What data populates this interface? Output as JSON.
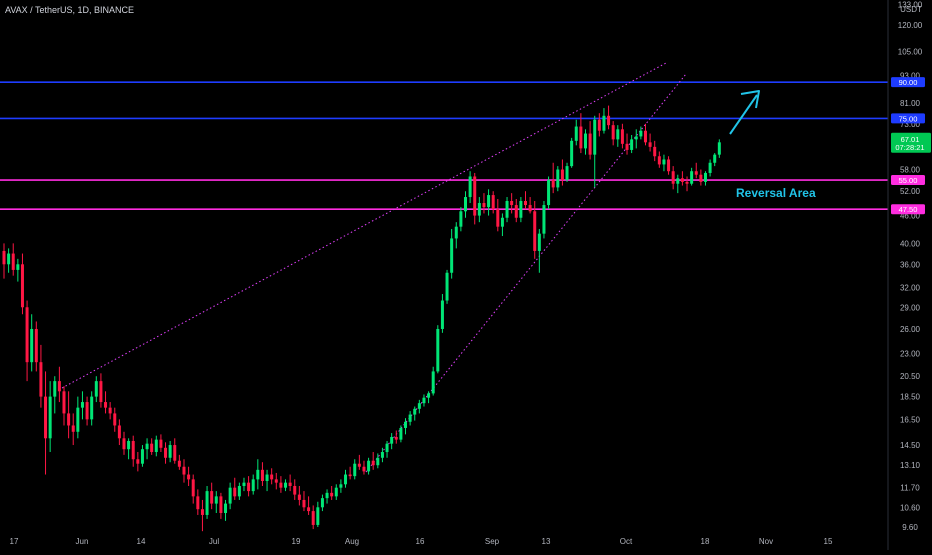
{
  "header": {
    "symbol": "AVAX / TetherUS, 1D, BINANCE"
  },
  "price_axis": {
    "currency": "USDT",
    "ticks": [
      "133.00",
      "120.00",
      "105.00",
      "93.00",
      "81.00",
      "73.00",
      "58.00",
      "52.00",
      "46.00",
      "40.00",
      "36.00",
      "32.00",
      "29.00",
      "26.00",
      "23.00",
      "20.50",
      "18.50",
      "16.50",
      "14.50",
      "13.10",
      "11.70",
      "10.60",
      "9.60"
    ],
    "current_price": "67.01",
    "countdown": "07:28:21"
  },
  "time_axis": {
    "labels": [
      "17",
      "Jun",
      "14",
      "Jul",
      "19",
      "Aug",
      "16",
      "Sep",
      "13",
      "Oct",
      "18",
      "Nov",
      "15"
    ]
  },
  "colors": {
    "background": "#000000",
    "bull": "#00e676",
    "bear": "#ff1744",
    "blue_level": "#1e3cff",
    "magenta_level": "#ff2de0",
    "wedge": "#e040fb",
    "arrow": "#21c4e8",
    "price_tag": "#00c853"
  },
  "chart_data": {
    "type": "candlestick",
    "title": "AVAX / TetherUS, 1D, BINANCE",
    "x_range": [
      "2021-05-17",
      "2021-11-20"
    ],
    "y_range": [
      9.3,
      140
    ],
    "y_scale": "log",
    "horizontal_levels": [
      {
        "value": 90.0,
        "label": "90.00",
        "color": "blue"
      },
      {
        "value": 75.0,
        "label": "75.00",
        "color": "blue"
      },
      {
        "value": 55.0,
        "label": "55.00",
        "color": "magenta"
      },
      {
        "value": 47.5,
        "label": "47.50",
        "color": "magenta"
      }
    ],
    "annotations": [
      {
        "text": "Reversal Area"
      }
    ],
    "candles": [
      {
        "o": 38.5,
        "h": 40.0,
        "l": 33.5,
        "c": 36.0
      },
      {
        "o": 36.0,
        "h": 39.0,
        "l": 34.5,
        "c": 38.0
      },
      {
        "o": 38.0,
        "h": 40.0,
        "l": 34.0,
        "c": 35.0
      },
      {
        "o": 35.0,
        "h": 37.0,
        "l": 33.0,
        "c": 36.0
      },
      {
        "o": 36.0,
        "h": 38.0,
        "l": 28.0,
        "c": 29.0
      },
      {
        "o": 29.0,
        "h": 30.0,
        "l": 20.0,
        "c": 22.0
      },
      {
        "o": 22.0,
        "h": 28.0,
        "l": 21.0,
        "c": 26.0
      },
      {
        "o": 26.0,
        "h": 27.0,
        "l": 21.0,
        "c": 22.0
      },
      {
        "o": 22.0,
        "h": 24.0,
        "l": 17.5,
        "c": 18.5
      },
      {
        "o": 18.5,
        "h": 21.0,
        "l": 12.5,
        "c": 15.0
      },
      {
        "o": 15.0,
        "h": 20.0,
        "l": 14.0,
        "c": 18.5
      },
      {
        "o": 18.5,
        "h": 20.5,
        "l": 17.0,
        "c": 20.0
      },
      {
        "o": 20.0,
        "h": 21.5,
        "l": 18.0,
        "c": 19.0
      },
      {
        "o": 19.0,
        "h": 19.5,
        "l": 16.0,
        "c": 17.0
      },
      {
        "o": 17.0,
        "h": 19.0,
        "l": 15.0,
        "c": 16.0
      },
      {
        "o": 16.0,
        "h": 17.0,
        "l": 14.5,
        "c": 15.5
      },
      {
        "o": 15.5,
        "h": 18.5,
        "l": 15.0,
        "c": 17.5
      },
      {
        "o": 17.5,
        "h": 19.0,
        "l": 16.5,
        "c": 18.0
      },
      {
        "o": 18.0,
        "h": 18.5,
        "l": 16.0,
        "c": 16.5
      },
      {
        "o": 16.5,
        "h": 19.0,
        "l": 16.0,
        "c": 18.5
      },
      {
        "o": 18.5,
        "h": 20.5,
        "l": 18.0,
        "c": 20.0
      },
      {
        "o": 20.0,
        "h": 20.8,
        "l": 17.5,
        "c": 18.0
      },
      {
        "o": 18.0,
        "h": 19.0,
        "l": 17.0,
        "c": 17.5
      },
      {
        "o": 17.5,
        "h": 18.0,
        "l": 16.5,
        "c": 17.0
      },
      {
        "o": 17.0,
        "h": 17.5,
        "l": 15.5,
        "c": 16.0
      },
      {
        "o": 16.0,
        "h": 16.5,
        "l": 14.5,
        "c": 15.0
      },
      {
        "o": 15.0,
        "h": 15.5,
        "l": 13.8,
        "c": 14.2
      },
      {
        "o": 14.2,
        "h": 15.0,
        "l": 13.5,
        "c": 14.8
      },
      {
        "o": 14.8,
        "h": 15.2,
        "l": 13.0,
        "c": 13.5
      },
      {
        "o": 13.5,
        "h": 14.0,
        "l": 12.7,
        "c": 13.2
      },
      {
        "o": 13.2,
        "h": 14.5,
        "l": 13.0,
        "c": 14.2
      },
      {
        "o": 14.2,
        "h": 15.0,
        "l": 13.5,
        "c": 14.6
      },
      {
        "o": 14.6,
        "h": 15.0,
        "l": 13.8,
        "c": 14.0
      },
      {
        "o": 14.0,
        "h": 15.2,
        "l": 13.7,
        "c": 14.9
      },
      {
        "o": 14.9,
        "h": 15.3,
        "l": 14.0,
        "c": 14.3
      },
      {
        "o": 14.3,
        "h": 14.7,
        "l": 13.2,
        "c": 13.6
      },
      {
        "o": 13.6,
        "h": 14.8,
        "l": 13.3,
        "c": 14.5
      },
      {
        "o": 14.5,
        "h": 15.0,
        "l": 13.2,
        "c": 13.4
      },
      {
        "o": 13.4,
        "h": 13.8,
        "l": 12.8,
        "c": 13.0
      },
      {
        "o": 13.0,
        "h": 13.5,
        "l": 12.0,
        "c": 12.5
      },
      {
        "o": 12.5,
        "h": 13.0,
        "l": 11.8,
        "c": 12.2
      },
      {
        "o": 12.2,
        "h": 12.5,
        "l": 10.8,
        "c": 11.2
      },
      {
        "o": 11.2,
        "h": 11.6,
        "l": 10.2,
        "c": 10.5
      },
      {
        "o": 10.5,
        "h": 11.0,
        "l": 9.4,
        "c": 10.2
      },
      {
        "o": 10.2,
        "h": 11.8,
        "l": 10.0,
        "c": 11.5
      },
      {
        "o": 11.5,
        "h": 12.0,
        "l": 10.5,
        "c": 10.8
      },
      {
        "o": 10.8,
        "h": 11.5,
        "l": 10.3,
        "c": 11.2
      },
      {
        "o": 11.2,
        "h": 11.4,
        "l": 10.0,
        "c": 10.3
      },
      {
        "o": 10.3,
        "h": 11.0,
        "l": 9.9,
        "c": 10.8
      },
      {
        "o": 10.8,
        "h": 12.0,
        "l": 10.5,
        "c": 11.7
      },
      {
        "o": 11.7,
        "h": 12.3,
        "l": 11.0,
        "c": 11.2
      },
      {
        "o": 11.2,
        "h": 12.0,
        "l": 11.0,
        "c": 11.8
      },
      {
        "o": 11.8,
        "h": 12.3,
        "l": 11.5,
        "c": 12.0
      },
      {
        "o": 12.0,
        "h": 12.4,
        "l": 11.2,
        "c": 11.5
      },
      {
        "o": 11.5,
        "h": 12.5,
        "l": 11.3,
        "c": 12.2
      },
      {
        "o": 12.2,
        "h": 13.5,
        "l": 11.6,
        "c": 12.8
      },
      {
        "o": 12.8,
        "h": 13.3,
        "l": 11.8,
        "c": 12.1
      },
      {
        "o": 12.1,
        "h": 12.8,
        "l": 11.5,
        "c": 12.5
      },
      {
        "o": 12.5,
        "h": 12.9,
        "l": 11.9,
        "c": 12.2
      },
      {
        "o": 12.2,
        "h": 12.6,
        "l": 11.6,
        "c": 12.0
      },
      {
        "o": 12.0,
        "h": 12.4,
        "l": 11.4,
        "c": 11.7
      },
      {
        "o": 11.7,
        "h": 12.2,
        "l": 11.5,
        "c": 12.0
      },
      {
        "o": 12.0,
        "h": 12.5,
        "l": 11.5,
        "c": 11.8
      },
      {
        "o": 11.8,
        "h": 12.2,
        "l": 11.0,
        "c": 11.3
      },
      {
        "o": 11.3,
        "h": 11.8,
        "l": 10.7,
        "c": 11.0
      },
      {
        "o": 11.0,
        "h": 11.5,
        "l": 10.4,
        "c": 10.6
      },
      {
        "o": 10.6,
        "h": 11.2,
        "l": 10.2,
        "c": 10.4
      },
      {
        "o": 10.4,
        "h": 10.7,
        "l": 9.5,
        "c": 9.7
      },
      {
        "o": 9.7,
        "h": 10.9,
        "l": 9.6,
        "c": 10.6
      },
      {
        "o": 10.6,
        "h": 11.3,
        "l": 10.4,
        "c": 11.1
      },
      {
        "o": 11.1,
        "h": 11.6,
        "l": 10.8,
        "c": 11.4
      },
      {
        "o": 11.4,
        "h": 11.8,
        "l": 11.0,
        "c": 11.2
      },
      {
        "o": 11.2,
        "h": 11.9,
        "l": 11.0,
        "c": 11.7
      },
      {
        "o": 11.7,
        "h": 12.2,
        "l": 11.4,
        "c": 11.9
      },
      {
        "o": 11.9,
        "h": 12.8,
        "l": 11.7,
        "c": 12.5
      },
      {
        "o": 12.5,
        "h": 13.0,
        "l": 12.2,
        "c": 12.4
      },
      {
        "o": 12.4,
        "h": 13.5,
        "l": 12.2,
        "c": 13.2
      },
      {
        "o": 13.2,
        "h": 13.8,
        "l": 12.8,
        "c": 13.0
      },
      {
        "o": 13.0,
        "h": 13.4,
        "l": 12.5,
        "c": 12.7
      },
      {
        "o": 12.7,
        "h": 13.6,
        "l": 12.5,
        "c": 13.4
      },
      {
        "o": 13.4,
        "h": 14.0,
        "l": 12.8,
        "c": 13.1
      },
      {
        "o": 13.1,
        "h": 13.9,
        "l": 12.9,
        "c": 13.6
      },
      {
        "o": 13.6,
        "h": 14.3,
        "l": 13.3,
        "c": 14.0
      },
      {
        "o": 14.0,
        "h": 14.8,
        "l": 13.6,
        "c": 14.6
      },
      {
        "o": 14.6,
        "h": 15.4,
        "l": 14.2,
        "c": 15.1
      },
      {
        "o": 15.1,
        "h": 15.6,
        "l": 14.6,
        "c": 14.9
      },
      {
        "o": 14.9,
        "h": 16.0,
        "l": 14.7,
        "c": 15.8
      },
      {
        "o": 15.8,
        "h": 16.6,
        "l": 15.3,
        "c": 16.3
      },
      {
        "o": 16.3,
        "h": 17.2,
        "l": 16.0,
        "c": 16.9
      },
      {
        "o": 16.9,
        "h": 17.6,
        "l": 16.4,
        "c": 17.4
      },
      {
        "o": 17.4,
        "h": 18.2,
        "l": 17.0,
        "c": 17.9
      },
      {
        "o": 17.9,
        "h": 18.7,
        "l": 17.6,
        "c": 18.4
      },
      {
        "o": 18.4,
        "h": 19.0,
        "l": 17.9,
        "c": 18.8
      },
      {
        "o": 18.8,
        "h": 21.5,
        "l": 18.6,
        "c": 21.0
      },
      {
        "o": 21.0,
        "h": 26.5,
        "l": 20.8,
        "c": 26.0
      },
      {
        "o": 26.0,
        "h": 31.0,
        "l": 25.5,
        "c": 30.0
      },
      {
        "o": 30.0,
        "h": 35.0,
        "l": 29.5,
        "c": 34.5
      },
      {
        "o": 34.5,
        "h": 43.0,
        "l": 33.5,
        "c": 41.0
      },
      {
        "o": 41.0,
        "h": 44.5,
        "l": 39.0,
        "c": 43.5
      },
      {
        "o": 43.5,
        "h": 48.0,
        "l": 42.5,
        "c": 47.0
      },
      {
        "o": 47.0,
        "h": 52.0,
        "l": 45.5,
        "c": 50.5
      },
      {
        "o": 50.5,
        "h": 57.5,
        "l": 49.0,
        "c": 56.0
      },
      {
        "o": 56.0,
        "h": 57.0,
        "l": 44.0,
        "c": 46.0
      },
      {
        "o": 46.0,
        "h": 50.5,
        "l": 44.5,
        "c": 49.0
      },
      {
        "o": 49.0,
        "h": 51.5,
        "l": 46.5,
        "c": 48.0
      },
      {
        "o": 48.0,
        "h": 52.5,
        "l": 46.0,
        "c": 51.0
      },
      {
        "o": 51.0,
        "h": 52.0,
        "l": 46.5,
        "c": 47.5
      },
      {
        "o": 47.5,
        "h": 50.0,
        "l": 42.5,
        "c": 43.5
      },
      {
        "o": 43.5,
        "h": 46.5,
        "l": 41.5,
        "c": 45.5
      },
      {
        "o": 45.5,
        "h": 50.5,
        "l": 44.5,
        "c": 49.5
      },
      {
        "o": 49.5,
        "h": 51.5,
        "l": 46.5,
        "c": 48.5
      },
      {
        "o": 48.5,
        "h": 50.0,
        "l": 44.5,
        "c": 45.5
      },
      {
        "o": 45.5,
        "h": 50.5,
        "l": 44.5,
        "c": 49.5
      },
      {
        "o": 49.5,
        "h": 52.0,
        "l": 47.5,
        "c": 48.5
      },
      {
        "o": 48.5,
        "h": 50.5,
        "l": 46.5,
        "c": 47.0
      },
      {
        "o": 47.0,
        "h": 49.5,
        "l": 37.0,
        "c": 38.5
      },
      {
        "o": 38.5,
        "h": 43.0,
        "l": 34.5,
        "c": 42.0
      },
      {
        "o": 42.0,
        "h": 49.5,
        "l": 41.0,
        "c": 48.5
      },
      {
        "o": 48.5,
        "h": 56.0,
        "l": 47.5,
        "c": 55.0
      },
      {
        "o": 55.0,
        "h": 60.0,
        "l": 51.5,
        "c": 53.0
      },
      {
        "o": 53.0,
        "h": 59.0,
        "l": 52.0,
        "c": 58.0
      },
      {
        "o": 58.0,
        "h": 61.0,
        "l": 53.5,
        "c": 55.0
      },
      {
        "o": 55.0,
        "h": 60.0,
        "l": 54.5,
        "c": 59.0
      },
      {
        "o": 59.0,
        "h": 68.0,
        "l": 58.5,
        "c": 67.0
      },
      {
        "o": 67.0,
        "h": 74.5,
        "l": 65.5,
        "c": 72.0
      },
      {
        "o": 72.0,
        "h": 77.0,
        "l": 63.0,
        "c": 64.5
      },
      {
        "o": 64.5,
        "h": 71.0,
        "l": 62.5,
        "c": 69.5
      },
      {
        "o": 69.5,
        "h": 74.0,
        "l": 61.0,
        "c": 62.5
      },
      {
        "o": 62.5,
        "h": 76.0,
        "l": 53.0,
        "c": 74.5
      },
      {
        "o": 74.5,
        "h": 77.0,
        "l": 68.5,
        "c": 70.5
      },
      {
        "o": 70.5,
        "h": 79.0,
        "l": 69.5,
        "c": 76.0
      },
      {
        "o": 76.0,
        "h": 80.0,
        "l": 71.0,
        "c": 72.5
      },
      {
        "o": 72.5,
        "h": 74.0,
        "l": 65.5,
        "c": 67.5
      },
      {
        "o": 67.5,
        "h": 72.5,
        "l": 65.0,
        "c": 71.0
      },
      {
        "o": 71.0,
        "h": 73.0,
        "l": 64.5,
        "c": 66.0
      },
      {
        "o": 66.0,
        "h": 69.5,
        "l": 62.5,
        "c": 64.0
      },
      {
        "o": 64.0,
        "h": 69.0,
        "l": 63.0,
        "c": 67.5
      },
      {
        "o": 67.5,
        "h": 71.0,
        "l": 64.5,
        "c": 68.5
      },
      {
        "o": 68.5,
        "h": 72.0,
        "l": 67.5,
        "c": 70.5
      },
      {
        "o": 70.5,
        "h": 73.0,
        "l": 65.5,
        "c": 66.5
      },
      {
        "o": 66.5,
        "h": 69.5,
        "l": 63.5,
        "c": 65.0
      },
      {
        "o": 65.0,
        "h": 67.0,
        "l": 60.5,
        "c": 62.0
      },
      {
        "o": 62.0,
        "h": 63.5,
        "l": 58.5,
        "c": 59.5
      },
      {
        "o": 59.5,
        "h": 62.5,
        "l": 57.5,
        "c": 61.0
      },
      {
        "o": 61.0,
        "h": 62.0,
        "l": 56.5,
        "c": 57.5
      },
      {
        "o": 57.5,
        "h": 59.0,
        "l": 52.5,
        "c": 54.0
      },
      {
        "o": 54.0,
        "h": 56.5,
        "l": 51.5,
        "c": 55.5
      },
      {
        "o": 55.5,
        "h": 57.5,
        "l": 53.5,
        "c": 54.5
      },
      {
        "o": 54.5,
        "h": 56.0,
        "l": 52.0,
        "c": 54.0
      },
      {
        "o": 54.0,
        "h": 58.5,
        "l": 53.5,
        "c": 57.5
      },
      {
        "o": 57.5,
        "h": 60.0,
        "l": 55.5,
        "c": 56.5
      },
      {
        "o": 56.5,
        "h": 58.0,
        "l": 53.5,
        "c": 54.5
      },
      {
        "o": 54.5,
        "h": 57.5,
        "l": 53.5,
        "c": 57.0
      },
      {
        "o": 57.0,
        "h": 61.0,
        "l": 56.0,
        "c": 60.0
      },
      {
        "o": 60.0,
        "h": 63.0,
        "l": 59.0,
        "c": 62.5
      },
      {
        "o": 62.5,
        "h": 67.5,
        "l": 61.5,
        "c": 66.5
      }
    ]
  }
}
